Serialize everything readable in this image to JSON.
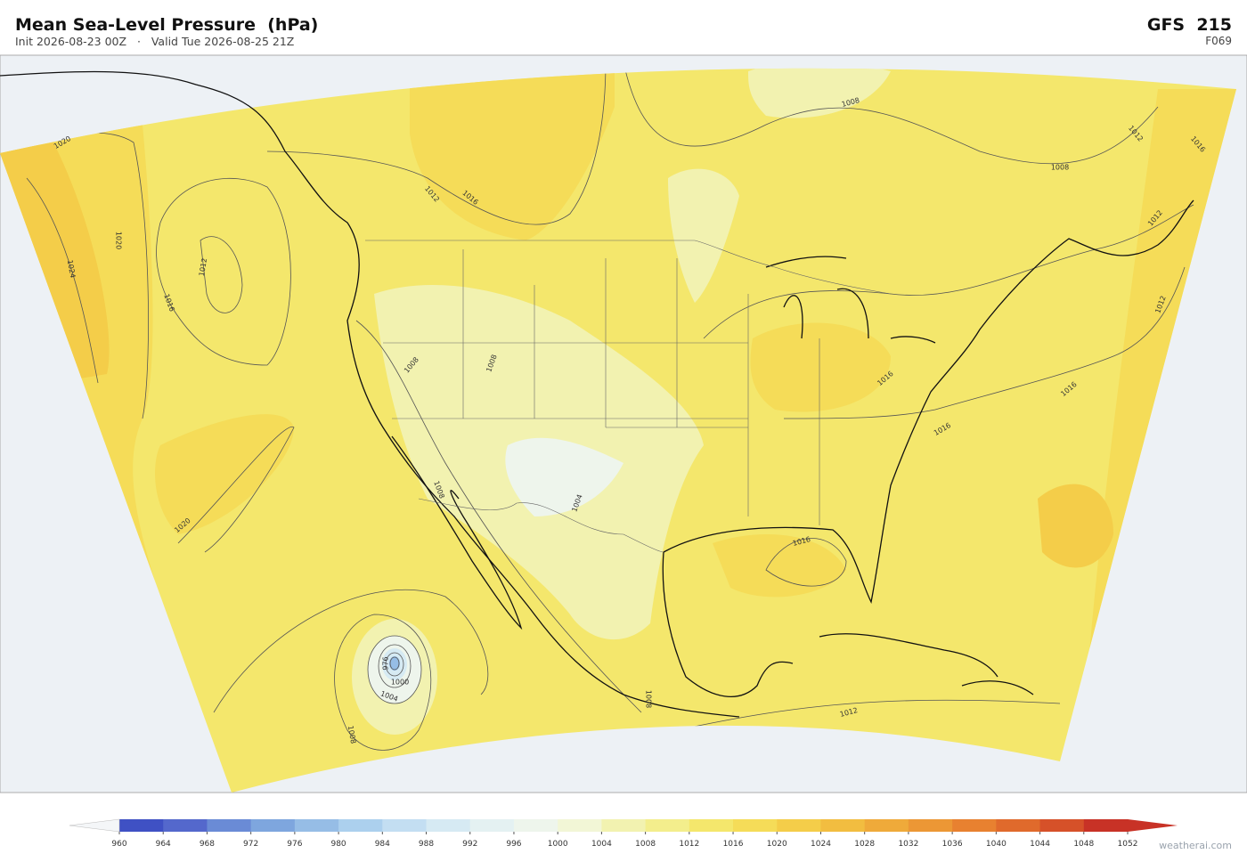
{
  "header": {
    "title": "Mean Sea-Level Pressure  (hPa)",
    "subtitle": "Init 2026-08-23 00Z   ·   Valid Tue 2026-08-25 21Z",
    "model": "GFS  215",
    "forecast_hour": "F069"
  },
  "map": {
    "contour_labels": [
      1020,
      1020,
      1024,
      1012,
      1016,
      1020,
      1012,
      1016,
      1008,
      1008,
      1012,
      1016,
      1012,
      1012,
      1016,
      1016,
      1016,
      1016,
      1012,
      1008,
      1008,
      1008,
      1004,
      1008,
      1008,
      1004,
      1000,
      976
    ]
  },
  "colorbar": {
    "ticks": [
      960,
      964,
      968,
      972,
      976,
      980,
      984,
      988,
      992,
      996,
      1000,
      1004,
      1008,
      1012,
      1016,
      1020,
      1024,
      1028,
      1032,
      1036,
      1040,
      1044,
      1048,
      1052
    ],
    "colors": [
      "#3f51c4",
      "#5468cc",
      "#6a8bd6",
      "#7ea6de",
      "#96bde6",
      "#acd0ee",
      "#c3def2",
      "#d6eaf3",
      "#e4f1f2",
      "#eef5ec",
      "#f2f6d6",
      "#f2f2b0",
      "#f3ee8c",
      "#f4e76c",
      "#f5dc58",
      "#f4cd49",
      "#f2bd40",
      "#efaa3a",
      "#ec9735",
      "#e88130",
      "#e06a2c",
      "#d65129",
      "#c83226"
    ],
    "under_color": "#f4f6f8",
    "over_color": "#c83226"
  },
  "footer": {
    "watermark": "weatherai.com"
  }
}
